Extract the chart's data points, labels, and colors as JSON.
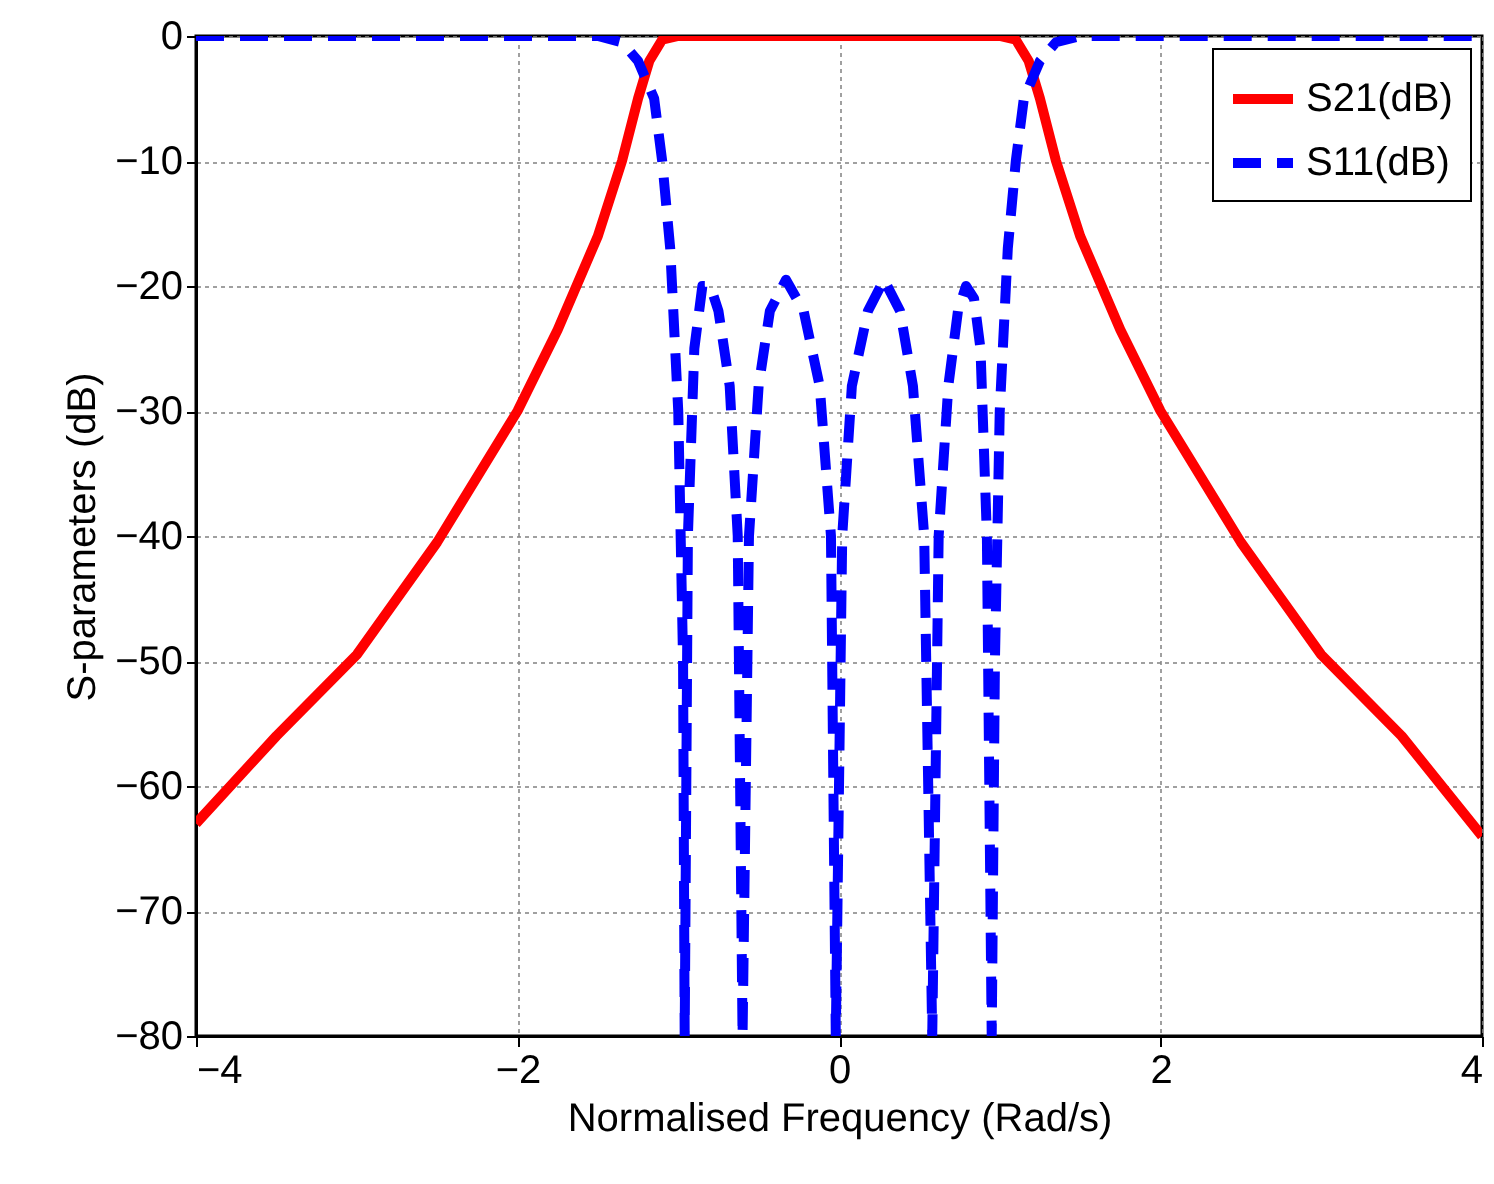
{
  "chart_data": {
    "type": "line",
    "xlabel": "Normalised Frequency (Rad/s)",
    "ylabel": "S-parameters (dB)",
    "xlim": [
      -4,
      4
    ],
    "xticks": [
      -4,
      -2,
      0,
      2,
      4
    ],
    "ylim": [
      -80,
      0
    ],
    "yticks": [
      -80,
      -70,
      -60,
      -50,
      -40,
      -30,
      -20,
      -10,
      0
    ],
    "grid": true,
    "legend": "top right",
    "series": [
      {
        "name": "S21(dB)",
        "color": "#ff0000",
        "line_style": "solid",
        "x": [
          -4,
          -3.5,
          -3,
          -2.5,
          -2,
          -1.75,
          -1.5,
          -1.35,
          -1.25,
          -1.18,
          -1.1,
          -1,
          1,
          1.1,
          1.18,
          1.25,
          1.35,
          1.5,
          1.75,
          2,
          2.5,
          3,
          3.5,
          4
        ],
        "values": [
          -63,
          -56,
          -49.5,
          -40.5,
          -30,
          -23.5,
          -16,
          -10,
          -5,
          -2,
          -0.3,
          0,
          0,
          -0.3,
          -2,
          -5,
          -10,
          -16,
          -23.5,
          -30,
          -40.5,
          -49.5,
          -56,
          -64
        ]
      },
      {
        "name": "S11(dB)",
        "color": "#0000ff",
        "line_style": "dashed",
        "x": [
          -4,
          -1.5,
          -1.35,
          -1.25,
          -1.15,
          -1.1,
          -1.05,
          -1,
          -0.97,
          -0.96,
          -0.94,
          -0.9,
          -0.85,
          -0.8,
          -0.75,
          -0.68,
          -0.63,
          -0.6,
          -0.56,
          -0.5,
          -0.43,
          -0.33,
          -0.22,
          -0.12,
          -0.05,
          -0.02,
          0.02,
          0.08,
          0.18,
          0.28,
          0.38,
          0.46,
          0.53,
          0.58,
          0.62,
          0.68,
          0.74,
          0.79,
          0.84,
          0.88,
          0.92,
          0.95,
          0.97,
          1,
          1.05,
          1.1,
          1.15,
          1.25,
          1.35,
          1.5,
          4
        ],
        "values": [
          0,
          0,
          -0.5,
          -2,
          -5,
          -10,
          -17,
          -30,
          -50,
          -80,
          -40,
          -25,
          -20,
          -20,
          -22,
          -28,
          -40,
          -80,
          -40,
          -28,
          -22,
          -19.5,
          -22,
          -28,
          -40,
          -80,
          -40,
          -28,
          -22,
          -19.5,
          -22,
          -28,
          -40,
          -80,
          -40,
          -28,
          -22,
          -20,
          -21,
          -25,
          -40,
          -80,
          -50,
          -30,
          -17,
          -10,
          -5,
          -2,
          -0.5,
          0,
          0
        ]
      }
    ]
  }
}
